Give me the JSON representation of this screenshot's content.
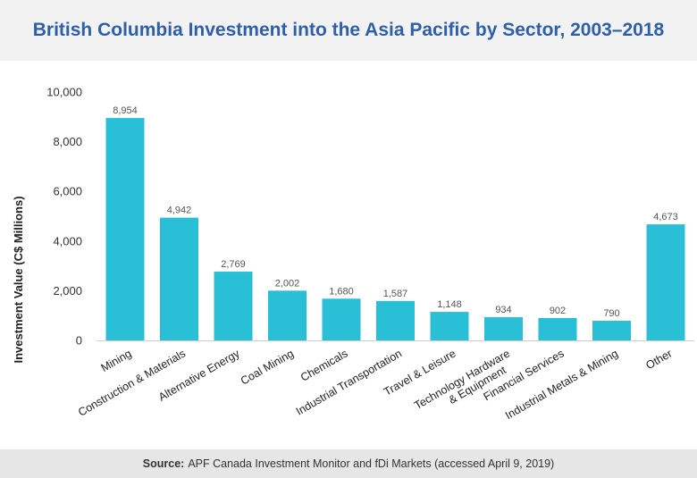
{
  "chart_data": {
    "type": "bar",
    "title": "British Columbia Investment into the Asia Pacific by Sector, 2003–2018",
    "xlabel": "",
    "ylabel": "Investment Value (C$ Millions)",
    "ylim": [
      0,
      10000
    ],
    "yticks": [
      "0",
      "2,000",
      "4,000",
      "6,000",
      "8,000",
      "10,000"
    ],
    "ytick_values": [
      0,
      2000,
      4000,
      6000,
      8000,
      10000
    ],
    "categories": [
      "Mining",
      "Construction & Materials",
      "Alternative Energy",
      "Coal Mining",
      "Chemicals",
      "Industrial Transportation",
      "Travel & Leisure",
      "Technology Hardware & Equipment",
      "Financial Services",
      "Industrial Metals & Mining",
      "Other"
    ],
    "values": [
      8954,
      4942,
      2769,
      2002,
      1680,
      1587,
      1148,
      934,
      902,
      790,
      4673
    ],
    "value_labels": [
      "8,954",
      "4,942",
      "2,769",
      "2,002",
      "1,680",
      "1,587",
      "1,148",
      "934",
      "902",
      "790",
      "4,673"
    ],
    "bar_color": "#29bfd6",
    "grid": false,
    "legend": "none"
  },
  "source": {
    "label": "Source:",
    "text": "APF Canada Investment Monitor and fDi Markets (accessed April 9, 2019)"
  }
}
